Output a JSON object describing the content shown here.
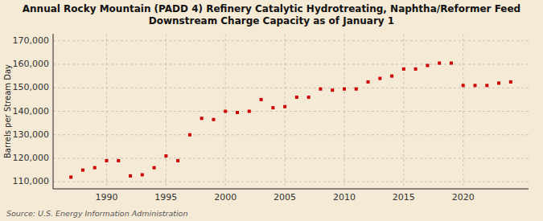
{
  "chart_data": {
    "type": "scatter",
    "title": "Annual Rocky Mountain (PADD 4) Refinery Catalytic Hydrotreating, Naphtha/Reformer Feed\nDownstream Charge Capacity as of January 1",
    "ylabel": "Barrels per Stream Day",
    "source": "Source: U.S. Energy Information Administration",
    "x": [
      1987,
      1988,
      1989,
      1990,
      1991,
      1992,
      1993,
      1994,
      1995,
      1996,
      1997,
      1998,
      1999,
      2000,
      2001,
      2002,
      2003,
      2004,
      2005,
      2006,
      2007,
      2008,
      2009,
      2010,
      2011,
      2012,
      2013,
      2014,
      2015,
      2016,
      2017,
      2018,
      2019,
      2020,
      2021,
      2022,
      2023,
      2024
    ],
    "values": [
      112000,
      115000,
      116000,
      119000,
      119000,
      112500,
      113000,
      116000,
      121000,
      119000,
      130000,
      137000,
      136500,
      140000,
      139500,
      140000,
      145000,
      141500,
      142000,
      146000,
      146000,
      149500,
      149000,
      149500,
      149500,
      152500,
      154000,
      155000,
      158000,
      158000,
      159500,
      160500,
      160500,
      151000,
      151000,
      151000,
      152000,
      152500
    ],
    "color": "#cc0000",
    "marker": "square",
    "xlim": [
      1985.5,
      2025.5
    ],
    "ylim": [
      107000,
      173000
    ],
    "xticks": [
      1990,
      1995,
      2000,
      2005,
      2010,
      2015,
      2020
    ],
    "yticks": [
      {
        "value": 110000,
        "label": "110,000"
      },
      {
        "value": 120000,
        "label": "120,000"
      },
      {
        "value": 130000,
        "label": "130,000"
      },
      {
        "value": 140000,
        "label": "140,000"
      },
      {
        "value": 150000,
        "label": "150,000"
      },
      {
        "value": 160000,
        "label": "160,000"
      },
      {
        "value": 170000,
        "label": "170,000"
      }
    ],
    "grid": true
  }
}
